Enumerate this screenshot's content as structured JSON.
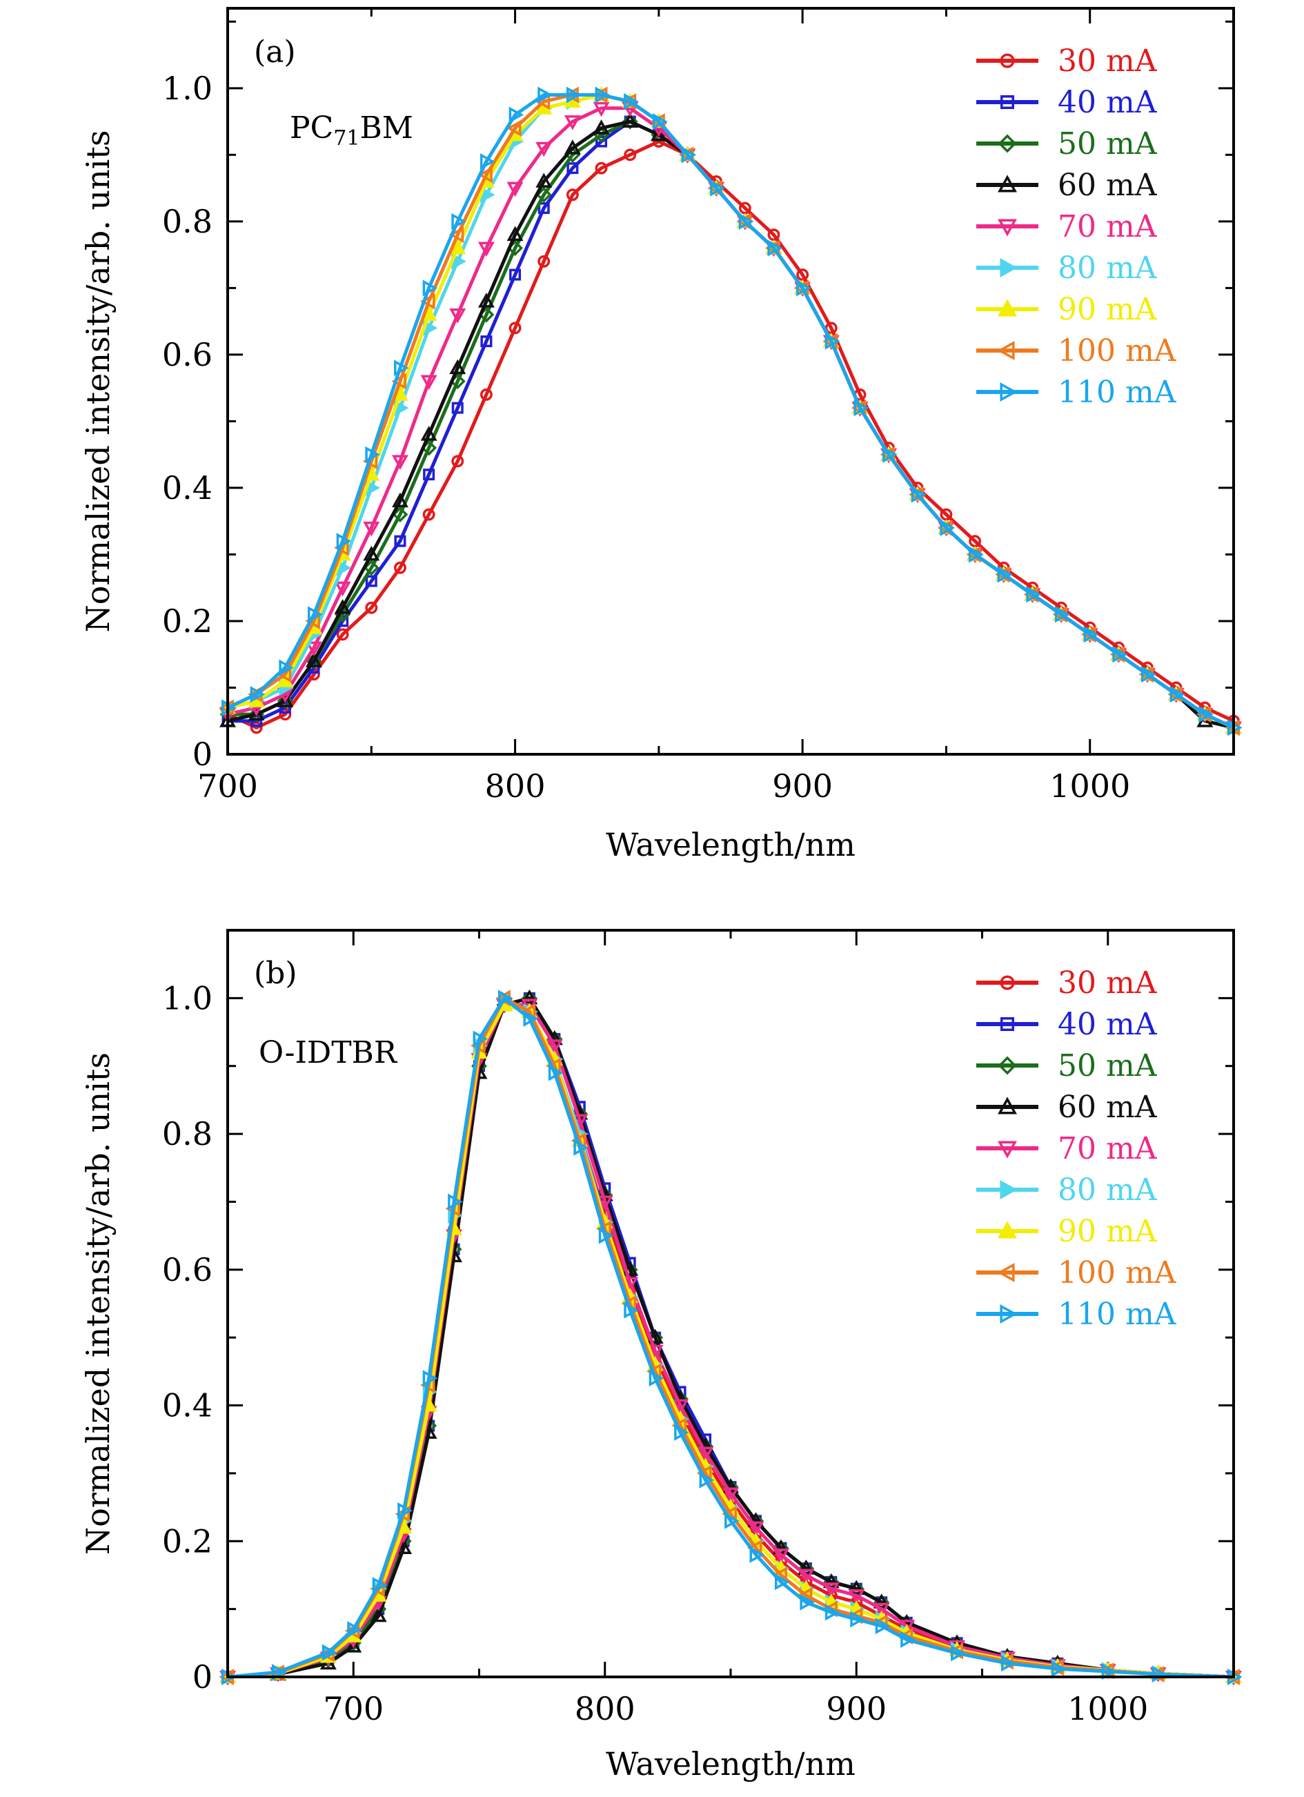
{
  "figure": {
    "ylabel": "Normalized intensity/arb. units",
    "xlabel": "Wavelength/nm"
  },
  "legend_entries": [
    {
      "label": "30 mA",
      "color": "#e31a1c",
      "marker": "circle"
    },
    {
      "label": "40 mA",
      "color": "#1f1fd6",
      "marker": "square"
    },
    {
      "label": "50 mA",
      "color": "#1b6e1b",
      "marker": "diamond"
    },
    {
      "label": "60 mA",
      "color": "#111111",
      "marker": "triangle-up"
    },
    {
      "label": "70 mA",
      "color": "#ee2a8a",
      "marker": "triangle-down"
    },
    {
      "label": "80 mA",
      "color": "#4fd6ee",
      "marker": "triangle-right-flag"
    },
    {
      "label": "90 mA",
      "color": "#f2ee00",
      "marker": "triangle-up-filled"
    },
    {
      "label": "100 mA",
      "color": "#f07a1e",
      "marker": "triangle-left"
    },
    {
      "label": "110 mA",
      "color": "#1aa6ee",
      "marker": "triangle-right"
    }
  ],
  "chart_data": [
    {
      "type": "line",
      "panel": "(a)",
      "material": {
        "base": "PC",
        "sub": "71",
        "rest": "BM"
      },
      "xlabel": "Wavelength/nm",
      "ylabel": "Normalized intensity/arb. units",
      "xlim": [
        700,
        1050
      ],
      "ylim": [
        0,
        1.12
      ],
      "xticks": [
        700,
        800,
        900,
        1000
      ],
      "yticks": [
        0,
        0.2,
        0.4,
        0.6,
        0.8,
        1.0
      ],
      "ytick_labels": [
        "0",
        "0.2",
        "0.4",
        "0.6",
        "0.8",
        "1.0"
      ],
      "legend_position": "top-right",
      "x": [
        700,
        710,
        720,
        730,
        740,
        750,
        760,
        770,
        780,
        790,
        800,
        810,
        820,
        830,
        840,
        850,
        860,
        870,
        880,
        890,
        900,
        910,
        920,
        930,
        940,
        950,
        960,
        970,
        980,
        990,
        1000,
        1010,
        1020,
        1030,
        1040,
        1050
      ],
      "series": [
        {
          "name": "30 mA",
          "values": [
            0.06,
            0.04,
            0.06,
            0.12,
            0.18,
            0.22,
            0.28,
            0.36,
            0.44,
            0.54,
            0.64,
            0.74,
            0.84,
            0.88,
            0.9,
            0.92,
            0.9,
            0.86,
            0.82,
            0.78,
            0.72,
            0.64,
            0.54,
            0.46,
            0.4,
            0.36,
            0.32,
            0.28,
            0.25,
            0.22,
            0.19,
            0.16,
            0.13,
            0.1,
            0.07,
            0.05
          ]
        },
        {
          "name": "40 mA",
          "values": [
            0.05,
            0.05,
            0.07,
            0.13,
            0.2,
            0.26,
            0.32,
            0.42,
            0.52,
            0.62,
            0.72,
            0.82,
            0.88,
            0.92,
            0.95,
            0.93,
            0.9,
            0.85,
            0.8,
            0.76,
            0.7,
            0.62,
            0.52,
            0.45,
            0.39,
            0.34,
            0.3,
            0.27,
            0.24,
            0.21,
            0.18,
            0.15,
            0.12,
            0.09,
            0.06,
            0.04
          ]
        },
        {
          "name": "50 mA",
          "values": [
            0.06,
            0.06,
            0.08,
            0.14,
            0.21,
            0.28,
            0.36,
            0.46,
            0.56,
            0.66,
            0.76,
            0.84,
            0.9,
            0.93,
            0.95,
            0.93,
            0.9,
            0.85,
            0.8,
            0.76,
            0.7,
            0.62,
            0.52,
            0.45,
            0.39,
            0.34,
            0.3,
            0.27,
            0.24,
            0.21,
            0.18,
            0.15,
            0.12,
            0.09,
            0.06,
            0.04
          ]
        },
        {
          "name": "60 mA",
          "values": [
            0.05,
            0.06,
            0.08,
            0.14,
            0.22,
            0.3,
            0.38,
            0.48,
            0.58,
            0.68,
            0.78,
            0.86,
            0.91,
            0.94,
            0.95,
            0.93,
            0.9,
            0.85,
            0.8,
            0.76,
            0.7,
            0.62,
            0.52,
            0.45,
            0.39,
            0.34,
            0.3,
            0.27,
            0.24,
            0.21,
            0.18,
            0.15,
            0.12,
            0.09,
            0.05,
            0.04
          ]
        },
        {
          "name": "70 mA",
          "values": [
            0.06,
            0.07,
            0.09,
            0.16,
            0.25,
            0.34,
            0.44,
            0.56,
            0.66,
            0.76,
            0.85,
            0.91,
            0.95,
            0.97,
            0.97,
            0.94,
            0.9,
            0.85,
            0.8,
            0.76,
            0.7,
            0.62,
            0.52,
            0.45,
            0.39,
            0.34,
            0.3,
            0.27,
            0.24,
            0.21,
            0.18,
            0.15,
            0.12,
            0.09,
            0.06,
            0.04
          ]
        },
        {
          "name": "80 mA",
          "values": [
            0.07,
            0.08,
            0.1,
            0.18,
            0.28,
            0.4,
            0.52,
            0.64,
            0.74,
            0.84,
            0.92,
            0.97,
            0.98,
            0.99,
            0.98,
            0.95,
            0.9,
            0.85,
            0.8,
            0.76,
            0.7,
            0.62,
            0.52,
            0.45,
            0.39,
            0.34,
            0.3,
            0.27,
            0.24,
            0.21,
            0.18,
            0.15,
            0.12,
            0.09,
            0.06,
            0.04
          ]
        },
        {
          "name": "90 mA",
          "values": [
            0.07,
            0.08,
            0.11,
            0.19,
            0.3,
            0.42,
            0.54,
            0.66,
            0.76,
            0.86,
            0.93,
            0.97,
            0.98,
            0.99,
            0.98,
            0.95,
            0.9,
            0.85,
            0.8,
            0.76,
            0.7,
            0.62,
            0.52,
            0.45,
            0.39,
            0.34,
            0.3,
            0.27,
            0.24,
            0.21,
            0.18,
            0.15,
            0.12,
            0.09,
            0.06,
            0.04
          ]
        },
        {
          "name": "100 mA",
          "values": [
            0.07,
            0.09,
            0.12,
            0.2,
            0.31,
            0.44,
            0.56,
            0.68,
            0.78,
            0.87,
            0.94,
            0.98,
            0.99,
            0.99,
            0.98,
            0.95,
            0.9,
            0.85,
            0.8,
            0.76,
            0.7,
            0.62,
            0.52,
            0.45,
            0.39,
            0.34,
            0.3,
            0.27,
            0.24,
            0.21,
            0.18,
            0.15,
            0.12,
            0.09,
            0.06,
            0.04
          ]
        },
        {
          "name": "110 mA",
          "values": [
            0.07,
            0.09,
            0.13,
            0.21,
            0.32,
            0.45,
            0.58,
            0.7,
            0.8,
            0.89,
            0.96,
            0.99,
            0.99,
            0.99,
            0.98,
            0.95,
            0.9,
            0.85,
            0.8,
            0.76,
            0.7,
            0.62,
            0.52,
            0.45,
            0.39,
            0.34,
            0.3,
            0.27,
            0.24,
            0.21,
            0.18,
            0.15,
            0.12,
            0.09,
            0.06,
            0.04
          ]
        }
      ]
    },
    {
      "type": "line",
      "panel": "(b)",
      "material": {
        "base": "O-IDTBR",
        "sub": "",
        "rest": ""
      },
      "xlabel": "Wavelength/nm",
      "ylabel": "Normalized intensity/arb. units",
      "xlim": [
        650,
        1050
      ],
      "ylim": [
        0,
        1.1
      ],
      "xticks": [
        700,
        800,
        900,
        1000
      ],
      "yticks": [
        0,
        0.2,
        0.4,
        0.6,
        0.8,
        1.0
      ],
      "ytick_labels": [
        "0",
        "0.2",
        "0.4",
        "0.6",
        "0.8",
        "1.0"
      ],
      "legend_position": "top-right",
      "x": [
        650,
        670,
        690,
        700,
        710,
        720,
        730,
        740,
        750,
        760,
        770,
        780,
        790,
        800,
        810,
        820,
        830,
        840,
        850,
        860,
        870,
        880,
        890,
        900,
        910,
        920,
        940,
        960,
        980,
        1000,
        1020,
        1050
      ],
      "series": [
        {
          "name": "30 mA",
          "values": [
            0.0,
            0.005,
            0.03,
            0.06,
            0.12,
            0.22,
            0.4,
            0.66,
            0.92,
            0.99,
            0.98,
            0.91,
            0.8,
            0.68,
            0.57,
            0.47,
            0.39,
            0.32,
            0.26,
            0.21,
            0.17,
            0.14,
            0.12,
            0.11,
            0.09,
            0.07,
            0.04,
            0.025,
            0.015,
            0.01,
            0.005,
            0.0
          ]
        },
        {
          "name": "40 mA",
          "values": [
            0.0,
            0.005,
            0.025,
            0.05,
            0.1,
            0.2,
            0.37,
            0.63,
            0.9,
            0.99,
            1.0,
            0.94,
            0.84,
            0.72,
            0.61,
            0.5,
            0.42,
            0.35,
            0.28,
            0.23,
            0.19,
            0.16,
            0.14,
            0.13,
            0.11,
            0.08,
            0.05,
            0.03,
            0.02,
            0.01,
            0.005,
            0.0
          ]
        },
        {
          "name": "50 mA",
          "values": [
            0.0,
            0.005,
            0.025,
            0.05,
            0.1,
            0.2,
            0.37,
            0.63,
            0.9,
            0.99,
            1.0,
            0.94,
            0.83,
            0.71,
            0.6,
            0.5,
            0.41,
            0.34,
            0.28,
            0.23,
            0.19,
            0.16,
            0.14,
            0.13,
            0.11,
            0.08,
            0.05,
            0.03,
            0.02,
            0.01,
            0.005,
            0.0
          ]
        },
        {
          "name": "60 mA",
          "values": [
            0.0,
            0.004,
            0.02,
            0.045,
            0.09,
            0.19,
            0.36,
            0.62,
            0.89,
            0.99,
            1.0,
            0.94,
            0.83,
            0.71,
            0.6,
            0.5,
            0.41,
            0.34,
            0.28,
            0.23,
            0.19,
            0.16,
            0.14,
            0.13,
            0.11,
            0.08,
            0.05,
            0.03,
            0.02,
            0.01,
            0.005,
            0.0
          ]
        },
        {
          "name": "70 mA",
          "values": [
            0.0,
            0.005,
            0.028,
            0.055,
            0.11,
            0.21,
            0.39,
            0.65,
            0.91,
            0.99,
            0.99,
            0.93,
            0.82,
            0.7,
            0.58,
            0.48,
            0.4,
            0.33,
            0.27,
            0.22,
            0.18,
            0.15,
            0.13,
            0.12,
            0.1,
            0.075,
            0.045,
            0.028,
            0.017,
            0.01,
            0.005,
            0.0
          ]
        },
        {
          "name": "80 mA",
          "values": [
            0.0,
            0.006,
            0.032,
            0.065,
            0.13,
            0.23,
            0.42,
            0.68,
            0.93,
            1.0,
            0.98,
            0.91,
            0.8,
            0.67,
            0.56,
            0.46,
            0.38,
            0.31,
            0.25,
            0.2,
            0.16,
            0.13,
            0.11,
            0.1,
            0.085,
            0.065,
            0.04,
            0.025,
            0.015,
            0.01,
            0.005,
            0.0
          ]
        },
        {
          "name": "90 mA",
          "values": [
            0.0,
            0.005,
            0.03,
            0.06,
            0.12,
            0.22,
            0.4,
            0.66,
            0.92,
            0.99,
            0.98,
            0.91,
            0.79,
            0.67,
            0.56,
            0.46,
            0.38,
            0.31,
            0.25,
            0.2,
            0.16,
            0.13,
            0.11,
            0.1,
            0.085,
            0.065,
            0.04,
            0.025,
            0.015,
            0.01,
            0.005,
            0.0
          ]
        },
        {
          "name": "100 mA",
          "values": [
            0.0,
            0.006,
            0.034,
            0.068,
            0.13,
            0.24,
            0.43,
            0.69,
            0.93,
            1.0,
            0.98,
            0.9,
            0.79,
            0.66,
            0.55,
            0.45,
            0.37,
            0.3,
            0.24,
            0.19,
            0.15,
            0.12,
            0.1,
            0.09,
            0.08,
            0.06,
            0.038,
            0.023,
            0.014,
            0.009,
            0.004,
            0.0
          ]
        },
        {
          "name": "110 mA",
          "values": [
            0.0,
            0.007,
            0.036,
            0.07,
            0.135,
            0.245,
            0.44,
            0.7,
            0.94,
            1.0,
            0.97,
            0.89,
            0.78,
            0.65,
            0.54,
            0.44,
            0.36,
            0.29,
            0.23,
            0.18,
            0.14,
            0.11,
            0.095,
            0.085,
            0.075,
            0.055,
            0.035,
            0.02,
            0.012,
            0.008,
            0.004,
            0.0
          ]
        }
      ]
    }
  ]
}
